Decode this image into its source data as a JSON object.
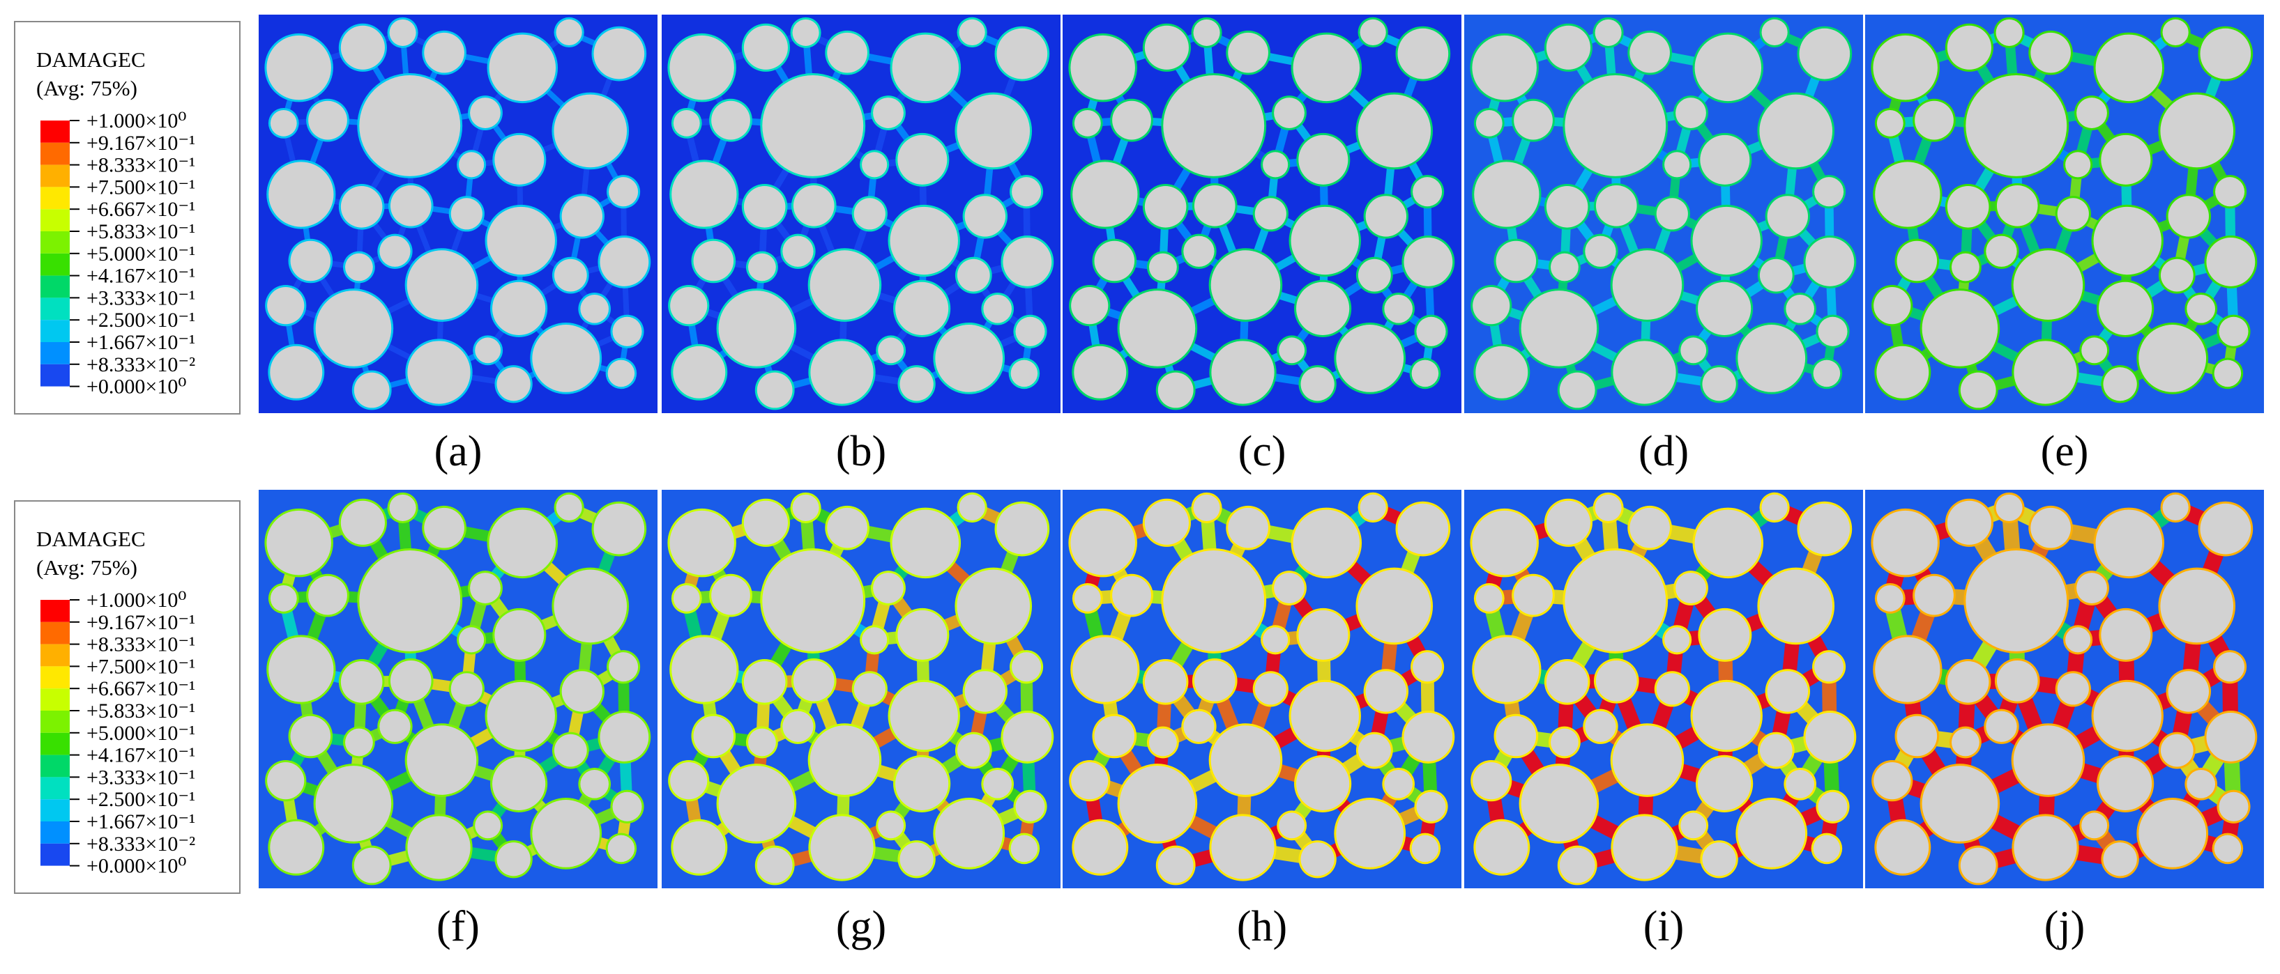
{
  "legends": [
    {
      "title": "DAMAGEC",
      "subtitle": "(Avg: 75%)",
      "entries": [
        "+1.000×10⁰",
        "+9.167×10⁻¹",
        "+8.333×10⁻¹",
        "+7.500×10⁻¹",
        "+6.667×10⁻¹",
        "+5.833×10⁻¹",
        "+5.000×10⁻¹",
        "+4.167×10⁻¹",
        "+3.333×10⁻¹",
        "+2.500×10⁻¹",
        "+1.667×10⁻¹",
        "+8.333×10⁻²",
        "+0.000×10⁰"
      ]
    },
    {
      "title": "DAMAGEC",
      "subtitle": "(Avg: 75%)",
      "entries": [
        "+1.000×10⁰",
        "+9.167×10⁻¹",
        "+8.333×10⁻¹",
        "+7.500×10⁻¹",
        "+6.667×10⁻¹",
        "+5.833×10⁻¹",
        "+5.000×10⁻¹",
        "+4.167×10⁻¹",
        "+3.333×10⁻¹",
        "+2.500×10⁻¹",
        "+1.667×10⁻¹",
        "+8.333×10⁻²",
        "+0.000×10⁰"
      ]
    }
  ],
  "panels": [
    {
      "label": "(a)"
    },
    {
      "label": "(b)"
    },
    {
      "label": "(c)"
    },
    {
      "label": "(d)"
    },
    {
      "label": "(e)"
    },
    {
      "label": "(f)"
    },
    {
      "label": "(g)"
    },
    {
      "label": "(h)"
    },
    {
      "label": "(i)"
    },
    {
      "label": "(j)"
    }
  ]
}
